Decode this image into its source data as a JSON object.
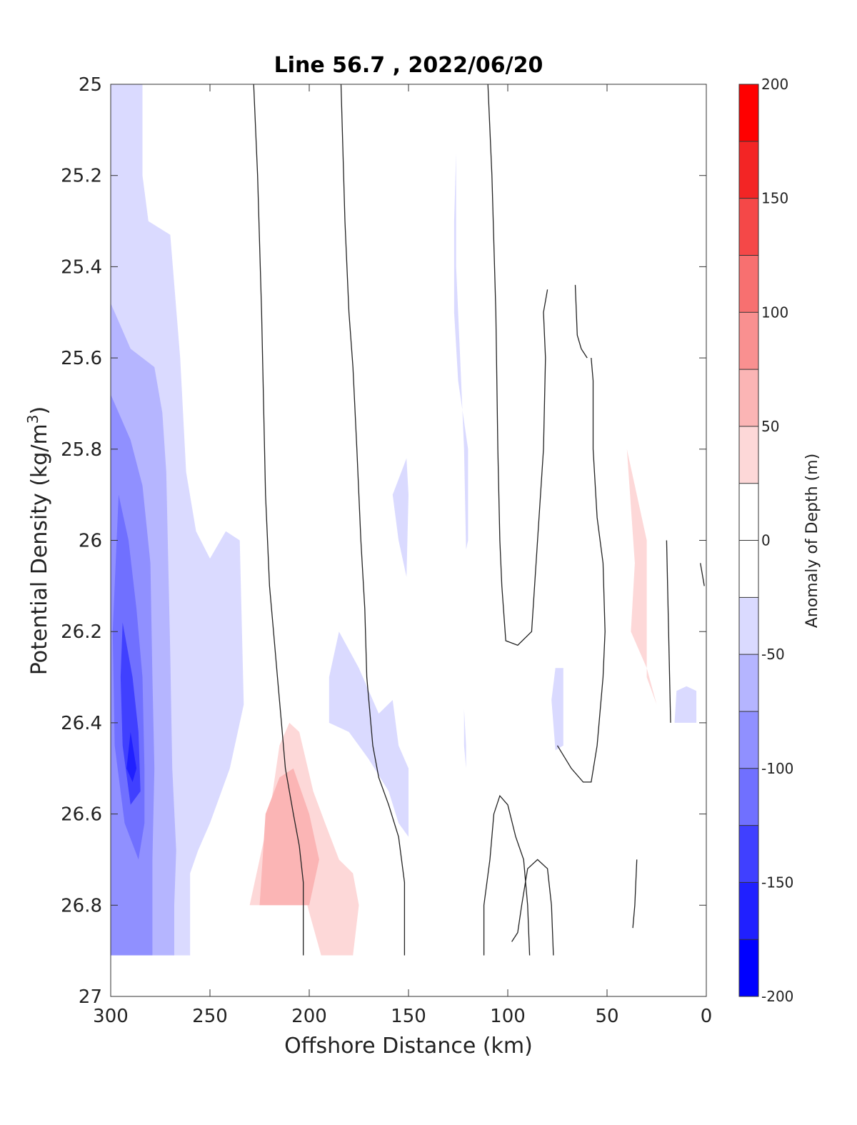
{
  "chart_data": {
    "type": "contour",
    "title": "Line 56.7 , 2022/06/20",
    "xlabel": "Offshore Distance (km)",
    "ylabel": "Potential Density (kg/m",
    "ylabel_superscript": "3",
    "ylabel_suffix": ")",
    "colorbar_label": "Anomaly of Depth (m)",
    "xlim": [
      300,
      0
    ],
    "ylim": [
      25,
      27
    ],
    "x_reversed": true,
    "y_reversed": true,
    "x_ticks": [
      300,
      250,
      200,
      150,
      100,
      50,
      0
    ],
    "x_tick_labels": [
      "300",
      "250",
      "200",
      "150",
      "100",
      "50",
      "0"
    ],
    "y_ticks": [
      25,
      25.2,
      25.4,
      25.6,
      25.8,
      26,
      26.2,
      26.4,
      26.6,
      26.8,
      27
    ],
    "y_tick_labels": [
      "25",
      "25.2",
      "25.4",
      "25.6",
      "25.8",
      "26",
      "26.2",
      "26.4",
      "26.6",
      "26.8",
      "27"
    ],
    "colorbar_range": [
      -200,
      200
    ],
    "colorbar_step": 25,
    "colorbar_tick_values": [
      200,
      150,
      100,
      50,
      0,
      -50,
      -100,
      -150,
      -200
    ],
    "colorbar_tick_labels": [
      "200",
      "150",
      "100",
      "50",
      "0",
      "-50",
      "-100",
      "-150",
      "-200"
    ],
    "colorbar_colors": [
      "#0000ff",
      "#2020ff",
      "#4040ff",
      "#7070ff",
      "#9090ff",
      "#b5b5ff",
      "#dadaff",
      "#ffffff",
      "#ffffff",
      "#fdd8d8",
      "#fbb5b5",
      "#f99090",
      "#f77070",
      "#f54848",
      "#f32525",
      "#ff0000"
    ],
    "filled_regions": [
      {
        "level": -50,
        "color": "#dadaff",
        "points": [
          [
            300,
            25
          ],
          [
            284,
            25
          ],
          [
            284,
            25.2
          ],
          [
            281,
            25.3
          ],
          [
            270,
            25.33
          ],
          [
            265,
            25.6
          ],
          [
            262,
            25.85
          ],
          [
            257,
            25.98
          ],
          [
            250,
            26.04
          ],
          [
            242,
            25.98
          ],
          [
            235,
            26.0
          ],
          [
            233,
            26.36
          ],
          [
            240,
            26.5
          ],
          [
            250,
            26.62
          ],
          [
            256,
            26.68
          ],
          [
            260,
            26.73
          ],
          [
            260,
            26.91
          ],
          [
            300,
            26.91
          ]
        ]
      },
      {
        "level": -75,
        "color": "#b5b5ff",
        "points": [
          [
            300,
            25.48
          ],
          [
            290,
            25.58
          ],
          [
            278,
            25.62
          ],
          [
            274,
            25.72
          ],
          [
            272,
            25.85
          ],
          [
            270,
            26.25
          ],
          [
            269,
            26.5
          ],
          [
            267,
            26.68
          ],
          [
            268,
            26.8
          ],
          [
            268,
            26.91
          ],
          [
            300,
            26.91
          ]
        ]
      },
      {
        "level": -100,
        "color": "#9090ff",
        "points": [
          [
            300,
            25.68
          ],
          [
            290,
            25.78
          ],
          [
            284,
            25.88
          ],
          [
            280,
            26.05
          ],
          [
            279,
            26.3
          ],
          [
            278,
            26.5
          ],
          [
            279,
            26.7
          ],
          [
            279,
            26.91
          ],
          [
            300,
            26.91
          ]
        ]
      },
      {
        "level": -125,
        "color": "#7070ff",
        "points": [
          [
            296,
            25.9
          ],
          [
            291,
            26.0
          ],
          [
            287,
            26.15
          ],
          [
            284,
            26.3
          ],
          [
            283,
            26.5
          ],
          [
            283,
            26.62
          ],
          [
            286,
            26.7
          ],
          [
            293,
            26.62
          ],
          [
            298,
            26.45
          ],
          [
            299,
            26.2
          ]
        ]
      },
      {
        "level": -150,
        "color": "#4040ff",
        "points": [
          [
            294,
            26.18
          ],
          [
            289,
            26.3
          ],
          [
            286,
            26.42
          ],
          [
            285,
            26.55
          ],
          [
            290,
            26.58
          ],
          [
            294,
            26.45
          ],
          [
            295,
            26.3
          ]
        ]
      },
      {
        "level": -175,
        "color": "#2020ff",
        "points": [
          [
            290,
            26.42
          ],
          [
            287,
            26.5
          ],
          [
            289,
            26.53
          ],
          [
            292,
            26.5
          ]
        ]
      },
      {
        "level": -50,
        "color": "#dadaff",
        "points": [
          [
            126,
            25.15
          ],
          [
            127,
            25.3
          ],
          [
            127,
            25.5
          ],
          [
            125,
            25.65
          ],
          [
            120,
            25.8
          ],
          [
            120,
            26.0
          ],
          [
            121,
            26.02
          ],
          [
            122,
            25.8
          ],
          [
            124,
            25.6
          ],
          [
            126,
            25.4
          ]
        ]
      },
      {
        "level": -50,
        "color": "#dadaff",
        "points": [
          [
            158,
            25.9
          ],
          [
            155,
            26.0
          ],
          [
            151,
            26.08
          ],
          [
            150,
            25.9
          ],
          [
            151,
            25.82
          ]
        ]
      },
      {
        "level": -50,
        "color": "#dadaff",
        "points": [
          [
            190,
            26.3
          ],
          [
            185,
            26.2
          ],
          [
            175,
            26.28
          ],
          [
            165,
            26.38
          ],
          [
            158,
            26.35
          ],
          [
            155,
            26.45
          ],
          [
            150,
            26.5
          ],
          [
            150,
            26.65
          ],
          [
            155,
            26.62
          ],
          [
            160,
            26.55
          ],
          [
            170,
            26.48
          ],
          [
            180,
            26.42
          ],
          [
            190,
            26.4
          ]
        ]
      },
      {
        "level": -50,
        "color": "#dadaff",
        "points": [
          [
            122,
            26.37
          ],
          [
            121,
            26.45
          ],
          [
            121,
            26.5
          ],
          [
            122,
            26.45
          ]
        ]
      },
      {
        "level": -50,
        "color": "#dadaff",
        "points": [
          [
            76,
            26.28
          ],
          [
            78,
            26.35
          ],
          [
            76,
            26.46
          ],
          [
            72,
            26.45
          ],
          [
            72,
            26.28
          ]
        ]
      },
      {
        "level": -50,
        "color": "#dadaff",
        "points": [
          [
            15,
            26.33
          ],
          [
            10,
            26.32
          ],
          [
            5,
            26.33
          ],
          [
            5,
            26.4
          ],
          [
            16,
            26.4
          ]
        ]
      },
      {
        "level": 50,
        "color": "#fdd8d8",
        "points": [
          [
            230,
            26.8
          ],
          [
            225,
            26.7
          ],
          [
            220,
            26.6
          ],
          [
            215,
            26.45
          ],
          [
            210,
            26.4
          ],
          [
            205,
            26.42
          ],
          [
            198,
            26.55
          ],
          [
            192,
            26.62
          ],
          [
            185,
            26.7
          ],
          [
            178,
            26.73
          ],
          [
            175,
            26.8
          ],
          [
            178,
            26.91
          ],
          [
            194,
            26.91
          ],
          [
            201,
            26.8
          ]
        ]
      },
      {
        "level": 75,
        "color": "#fbb5b5",
        "points": [
          [
            225,
            26.8
          ],
          [
            222,
            26.6
          ],
          [
            215,
            26.52
          ],
          [
            208,
            26.5
          ],
          [
            200,
            26.6
          ],
          [
            195,
            26.7
          ],
          [
            200,
            26.8
          ]
        ]
      },
      {
        "level": 50,
        "color": "#fdd8d8",
        "points": [
          [
            40,
            25.8
          ],
          [
            30,
            26.0
          ],
          [
            30,
            26.3
          ],
          [
            25,
            26.36
          ],
          [
            30,
            26.28
          ],
          [
            38,
            26.2
          ],
          [
            36,
            26.05
          ]
        ]
      }
    ],
    "contour_lines": [
      {
        "level": 0,
        "points": [
          [
            228,
            25
          ],
          [
            226,
            25.2
          ],
          [
            224,
            25.5
          ],
          [
            222,
            25.9
          ],
          [
            220,
            26.1
          ],
          [
            218,
            26.2
          ],
          [
            216,
            26.3
          ],
          [
            214,
            26.4
          ],
          [
            212,
            26.5
          ],
          [
            208,
            26.6
          ],
          [
            205,
            26.67
          ],
          [
            203,
            26.75
          ],
          [
            203,
            26.91
          ]
        ]
      },
      {
        "level": 0,
        "points": [
          [
            184,
            25
          ],
          [
            182,
            25.3
          ],
          [
            180,
            25.5
          ],
          [
            178,
            25.62
          ],
          [
            176,
            25.8
          ],
          [
            174,
            26.0
          ],
          [
            172,
            26.15
          ],
          [
            171,
            26.3
          ],
          [
            168,
            26.45
          ],
          [
            165,
            26.52
          ],
          [
            160,
            26.58
          ],
          [
            155,
            26.65
          ],
          [
            152,
            26.75
          ],
          [
            152,
            26.91
          ]
        ]
      },
      {
        "level": 0,
        "points": [
          [
            110,
            25
          ],
          [
            108,
            25.2
          ],
          [
            106,
            25.5
          ],
          [
            105,
            25.8
          ],
          [
            104,
            26.0
          ],
          [
            103,
            26.1
          ],
          [
            101,
            26.22
          ],
          [
            95,
            26.23
          ],
          [
            88,
            26.2
          ],
          [
            85,
            26.0
          ],
          [
            82,
            25.8
          ],
          [
            81,
            25.6
          ],
          [
            82,
            25.5
          ],
          [
            80,
            25.45
          ]
        ]
      },
      {
        "level": 0,
        "points": [
          [
            66,
            25.44
          ],
          [
            65,
            25.55
          ],
          [
            63,
            25.58
          ],
          [
            60,
            25.6
          ]
        ]
      },
      {
        "level": 0,
        "points": [
          [
            58,
            25.6
          ],
          [
            57,
            25.65
          ],
          [
            57,
            25.8
          ],
          [
            55,
            25.95
          ],
          [
            52,
            26.05
          ],
          [
            51,
            26.2
          ],
          [
            52,
            26.3
          ],
          [
            55,
            26.45
          ],
          [
            58,
            26.53
          ],
          [
            62,
            26.53
          ],
          [
            68,
            26.5
          ],
          [
            75,
            26.45
          ]
        ]
      },
      {
        "level": 0,
        "points": [
          [
            20,
            26.0
          ],
          [
            19,
            26.2
          ],
          [
            18,
            26.4
          ]
        ]
      },
      {
        "level": 0,
        "points": [
          [
            3,
            26.05
          ],
          [
            1,
            26.1
          ]
        ]
      },
      {
        "level": 0,
        "points": [
          [
            112,
            26.91
          ],
          [
            112,
            26.8
          ],
          [
            109,
            26.7
          ],
          [
            107,
            26.6
          ],
          [
            104,
            26.56
          ],
          [
            100,
            26.58
          ],
          [
            96,
            26.65
          ],
          [
            92,
            26.7
          ],
          [
            90,
            26.8
          ],
          [
            89,
            26.91
          ]
        ]
      },
      {
        "level": 0,
        "points": [
          [
            77,
            26.91
          ],
          [
            78,
            26.8
          ],
          [
            80,
            26.72
          ],
          [
            85,
            26.7
          ],
          [
            90,
            26.72
          ],
          [
            93,
            26.8
          ],
          [
            95,
            26.86
          ],
          [
            98,
            26.88
          ]
        ]
      },
      {
        "level": 0,
        "points": [
          [
            35,
            26.7
          ],
          [
            36,
            26.8
          ],
          [
            37,
            26.85
          ]
        ]
      }
    ]
  }
}
